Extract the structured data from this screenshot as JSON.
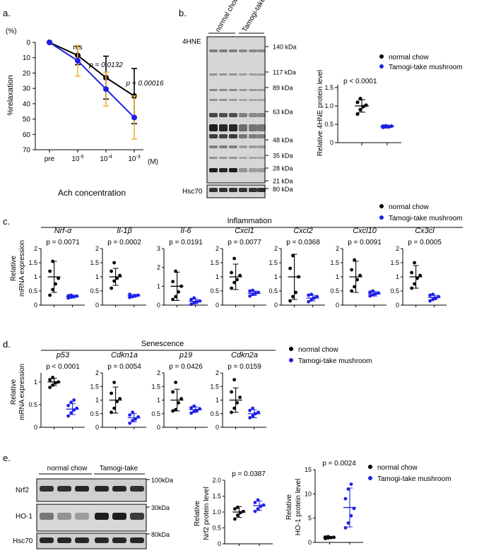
{
  "colors": {
    "black": "#000000",
    "blue": "#1f1fe6",
    "orange": "#f2b43a",
    "blot_bg": "#d0d0d0",
    "band": "#141414"
  },
  "panel_labels": {
    "a": "a.",
    "b": "b.",
    "c": "c.",
    "d": "d.",
    "e": "e."
  },
  "legend": {
    "normal": "normal chow",
    "tamogi": "Tamogi-take mushroom"
  },
  "panel_a": {
    "chart_data": {
      "type": "line",
      "ylabel": "%relaxation",
      "yunit": "(%)",
      "xlabel": "Ach concentration",
      "categories": [
        "pre",
        "10-5",
        "10-4",
        "10-3"
      ],
      "xunit": "(M)",
      "ylim": [
        0,
        70
      ],
      "yticks": [
        "0",
        "10",
        "20",
        "30",
        "40",
        "50",
        "60",
        "70"
      ],
      "y_inverted": true,
      "series": [
        {
          "name": "normal chow",
          "values": [
            0,
            8.5,
            23,
            35
          ],
          "error": [
            0,
            6,
            14,
            18
          ]
        },
        {
          "name": "Tamogi-take mushroom",
          "values": [
            0,
            12,
            30.5,
            49
          ],
          "error": [
            0,
            10,
            11,
            14
          ]
        }
      ],
      "annotations": [
        "n.s",
        "p = 0.0132",
        "p = 0.00016"
      ]
    }
  },
  "panel_b": {
    "blot": {
      "antibody": "4HNE",
      "loading": "Hsc70",
      "lanes": [
        "normal chow",
        "Tamogi-take"
      ],
      "markers": [
        "140 kDa",
        "117 kDa",
        "89 kDa",
        "63 kDa",
        "48 kDa",
        "35 kDa",
        "28 kDa",
        "21 kDa"
      ],
      "hsc70_marker": "80 kDa"
    },
    "chart_data": {
      "type": "scatter",
      "ylabel": "Relative 4HNE protein level",
      "ylim": [
        0,
        1.5
      ],
      "yticks": [
        "0",
        "0.5",
        "1.0",
        "1.5"
      ],
      "pvalue": "p < 0.0001",
      "groups": [
        {
          "name": "normal chow",
          "mean": 1.0,
          "sd": 0.17,
          "points": [
            0.78,
            0.9,
            0.98,
            1.02,
            1.1,
            1.2
          ]
        },
        {
          "name": "Tamogi-take mushroom",
          "mean": 0.44,
          "sd": 0.02,
          "points": [
            0.42,
            0.43,
            0.44,
            0.45,
            0.45,
            0.46,
            0.43
          ]
        }
      ]
    }
  },
  "panel_c": {
    "header": "Inflammation",
    "ylabel1": "Relative",
    "ylabel2": "mRNA expression",
    "chart_data": [
      {
        "gene": "Nrf-α",
        "pvalue": "p = 0.0071",
        "ymax": 2,
        "yticks": [
          "0",
          "0.5",
          "1",
          "1.5",
          "2"
        ],
        "normal": {
          "mean": 1.0,
          "sd": 0.55,
          "points": [
            0.35,
            0.55,
            0.75,
            0.95,
            1.2,
            1.55
          ]
        },
        "tamogi": {
          "mean": 0.3,
          "sd": 0.05,
          "points": [
            0.25,
            0.28,
            0.3,
            0.32,
            0.33,
            0.35
          ]
        }
      },
      {
        "gene": "Il-1β",
        "pvalue": "p = 0.0002",
        "ymax": 2,
        "yticks": [
          "0",
          "0.5",
          "1",
          "1.5",
          "2"
        ],
        "normal": {
          "mean": 1.0,
          "sd": 0.3,
          "points": [
            0.6,
            0.85,
            0.95,
            1.05,
            1.2,
            1.5
          ]
        },
        "tamogi": {
          "mean": 0.33,
          "sd": 0.05,
          "points": [
            0.27,
            0.3,
            0.33,
            0.35,
            0.38
          ]
        }
      },
      {
        "gene": "Il-6",
        "pvalue": "p = 0.0191",
        "ymax": 3,
        "yticks": [
          "0",
          "1",
          "2",
          "3"
        ],
        "normal": {
          "mean": 1.0,
          "sd": 0.75,
          "points": [
            0.3,
            0.45,
            0.7,
            1.0,
            1.25,
            1.8
          ]
        },
        "tamogi": {
          "mean": 0.2,
          "sd": 0.12,
          "points": [
            0.05,
            0.12,
            0.18,
            0.22,
            0.3,
            0.38
          ]
        }
      },
      {
        "gene": "Cxcl1",
        "pvalue": "p = 0.0077",
        "ymax": 2,
        "yticks": [
          "0",
          "0.5",
          "1",
          "1.5",
          "2"
        ],
        "normal": {
          "mean": 1.0,
          "sd": 0.45,
          "points": [
            0.6,
            0.8,
            0.9,
            1.05,
            1.15,
            1.65
          ]
        },
        "tamogi": {
          "mean": 0.42,
          "sd": 0.08,
          "points": [
            0.32,
            0.38,
            0.42,
            0.45,
            0.5,
            0.52
          ]
        }
      },
      {
        "gene": "Cxcl2",
        "pvalue": "p = 0.0368",
        "ymax": 2,
        "yticks": [
          "0",
          "0.5",
          "1",
          "1.5",
          "2"
        ],
        "normal": {
          "mean": 1.0,
          "sd": 0.8,
          "points": [
            0.15,
            0.3,
            0.45,
            1.0,
            1.3,
            1.75
          ]
        },
        "tamogi": {
          "mean": 0.25,
          "sd": 0.1,
          "points": [
            0.12,
            0.18,
            0.25,
            0.3,
            0.35,
            0.38
          ]
        }
      },
      {
        "gene": "Cxcl10",
        "pvalue": "p = 0.0091",
        "ymax": 2,
        "yticks": [
          "0",
          "0.5",
          "1",
          "1.5",
          "2"
        ],
        "normal": {
          "mean": 1.0,
          "sd": 0.55,
          "points": [
            0.5,
            0.65,
            0.9,
            1.05,
            1.25,
            1.6
          ]
        },
        "tamogi": {
          "mean": 0.4,
          "sd": 0.08,
          "points": [
            0.32,
            0.36,
            0.4,
            0.43,
            0.46,
            0.5
          ]
        }
      },
      {
        "gene": "Cx3cl",
        "pvalue": "p = 0.0005",
        "ymax": 2,
        "yticks": [
          "0",
          "0.5",
          "1",
          "1.5",
          "2"
        ],
        "normal": {
          "mean": 1.0,
          "sd": 0.4,
          "points": [
            0.6,
            0.75,
            0.95,
            1.05,
            1.15,
            1.5
          ]
        },
        "tamogi": {
          "mean": 0.27,
          "sd": 0.08,
          "points": [
            0.15,
            0.2,
            0.25,
            0.3,
            0.35,
            0.38
          ]
        }
      }
    ]
  },
  "panel_d": {
    "header": "Senescence",
    "ylabel1": "Relative",
    "ylabel2": "mRNA expression",
    "chart_data": [
      {
        "gene": "p53",
        "pvalue": "p < 0.0001",
        "ymax": 1.2,
        "yticks": [
          "0",
          "0.5",
          "1"
        ],
        "normal": {
          "mean": 1.0,
          "sd": 0.08,
          "points": [
            0.88,
            0.93,
            0.98,
            1.0,
            1.05,
            1.1
          ]
        },
        "tamogi": {
          "mean": 0.4,
          "sd": 0.12,
          "points": [
            0.25,
            0.32,
            0.38,
            0.42,
            0.48,
            0.55,
            0.6
          ]
        }
      },
      {
        "gene": "Cdkn1a",
        "pvalue": "p = 0.0054",
        "ymax": 2,
        "yticks": [
          "0",
          "0.5",
          "1",
          "1.5",
          "2"
        ],
        "normal": {
          "mean": 1.0,
          "sd": 0.48,
          "points": [
            0.55,
            0.7,
            0.95,
            1.05,
            1.25,
            1.65
          ]
        },
        "tamogi": {
          "mean": 0.35,
          "sd": 0.15,
          "points": [
            0.15,
            0.25,
            0.3,
            0.38,
            0.45,
            0.55
          ]
        }
      },
      {
        "gene": "p19",
        "pvalue": "p = 0.0426",
        "ymax": 2,
        "yticks": [
          "0",
          "0.5",
          "1",
          "1.5",
          "2"
        ],
        "normal": {
          "mean": 1.0,
          "sd": 0.4,
          "points": [
            0.6,
            0.65,
            0.9,
            1.05,
            1.3,
            1.65
          ]
        },
        "tamogi": {
          "mean": 0.65,
          "sd": 0.1,
          "points": [
            0.52,
            0.58,
            0.62,
            0.68,
            0.72,
            0.78
          ]
        }
      },
      {
        "gene": "Cdkn2a",
        "pvalue": "p = 0.0159",
        "ymax": 2,
        "yticks": [
          "0",
          "0.5",
          "1",
          "1.5",
          "2"
        ],
        "normal": {
          "mean": 1.0,
          "sd": 0.45,
          "points": [
            0.55,
            0.7,
            0.9,
            1.1,
            1.3,
            1.75
          ]
        },
        "tamogi": {
          "mean": 0.5,
          "sd": 0.15,
          "points": [
            0.35,
            0.42,
            0.5,
            0.55,
            0.62,
            0.7
          ]
        }
      }
    ]
  },
  "panel_e": {
    "blot": {
      "groups": [
        "normal chow",
        "Tamogi-take"
      ],
      "rows": [
        "Nrf2",
        "HO-1",
        "Hsc70"
      ],
      "markers": [
        "100kDa",
        "30kDa",
        "80kDa"
      ]
    },
    "chart_data": [
      {
        "type": "scatter",
        "ylabel1": "Relative",
        "ylabel2": "Nrf2 protein level",
        "pvalue": "p = 0.0387",
        "ymax": 2.0,
        "yticks": [
          "0",
          "0.5",
          "1.0",
          "1.5",
          "2.0"
        ],
        "normal": {
          "mean": 1.0,
          "sd": 0.17,
          "points": [
            0.78,
            0.9,
            0.98,
            1.02,
            1.1,
            1.15
          ]
        },
        "tamogi": {
          "mean": 1.2,
          "sd": 0.15,
          "points": [
            1.02,
            1.1,
            1.18,
            1.22,
            1.3,
            1.38
          ]
        }
      },
      {
        "type": "scatter",
        "ylabel1": "Relative",
        "ylabel2": "HO-1 protein level",
        "pvalue": "p = 0.0024",
        "ymax": 15,
        "yticks": [
          "0",
          "5",
          "10",
          "15"
        ],
        "normal": {
          "mean": 1.0,
          "sd": 0.15,
          "points": [
            0.8,
            0.9,
            1.0,
            1.05,
            1.1,
            1.2
          ]
        },
        "tamogi": {
          "mean": 7.2,
          "sd": 4.0,
          "points": [
            3.0,
            4.0,
            5.5,
            7.0,
            9.0,
            11.0,
            12.0
          ]
        }
      }
    ]
  }
}
